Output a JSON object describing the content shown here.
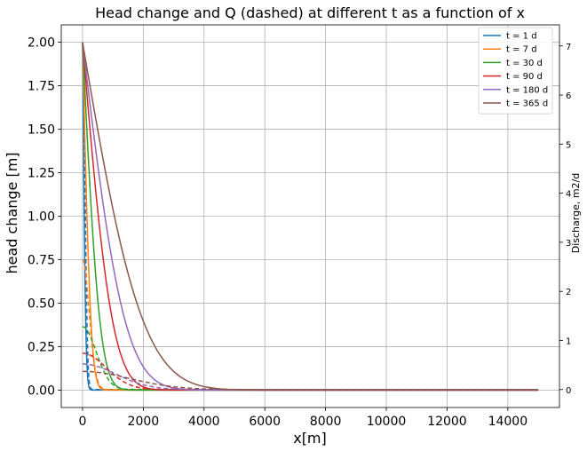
{
  "chart_data": {
    "type": "line",
    "title": "Head change and Q (dashed) at different t as a function of x",
    "xlabel": "x[m]",
    "ylabel": "head change [m]",
    "ylabel_right": "Discharge, m2/d",
    "xlim": [
      -700,
      15700
    ],
    "ylim": [
      -0.1,
      2.1
    ],
    "ylim_right": [
      -0.366,
      7.43
    ],
    "xticks": [
      0,
      2000,
      4000,
      6000,
      8000,
      10000,
      12000,
      14000
    ],
    "yticks": [
      "0.00",
      "0.25",
      "0.50",
      "0.75",
      "1.00",
      "1.25",
      "1.50",
      "1.75",
      "2.00"
    ],
    "yticks_right": [
      "0",
      "1",
      "2",
      "3",
      "4",
      "5",
      "6",
      "7"
    ],
    "grid": true,
    "legend_position": "top-right",
    "series": [
      {
        "name": "t = 1 d",
        "color": "#1f77b4",
        "head_scale_m": 115,
        "q_start": 7.0
      },
      {
        "name": "t = 7 d",
        "color": "#ff7f0e",
        "head_scale_m": 305,
        "q_start": 2.65
      },
      {
        "name": "t = 30 d",
        "color": "#2ca02c",
        "head_scale_m": 630,
        "q_start": 1.28
      },
      {
        "name": "t = 90 d",
        "color": "#d62728",
        "head_scale_m": 1090,
        "q_start": 0.74
      },
      {
        "name": "t = 180 d",
        "color": "#9467bd",
        "head_scale_m": 1545,
        "q_start": 0.52
      },
      {
        "name": "t = 365 d",
        "color": "#8c564b",
        "head_scale_m": 2200,
        "q_start": 0.37
      }
    ]
  }
}
